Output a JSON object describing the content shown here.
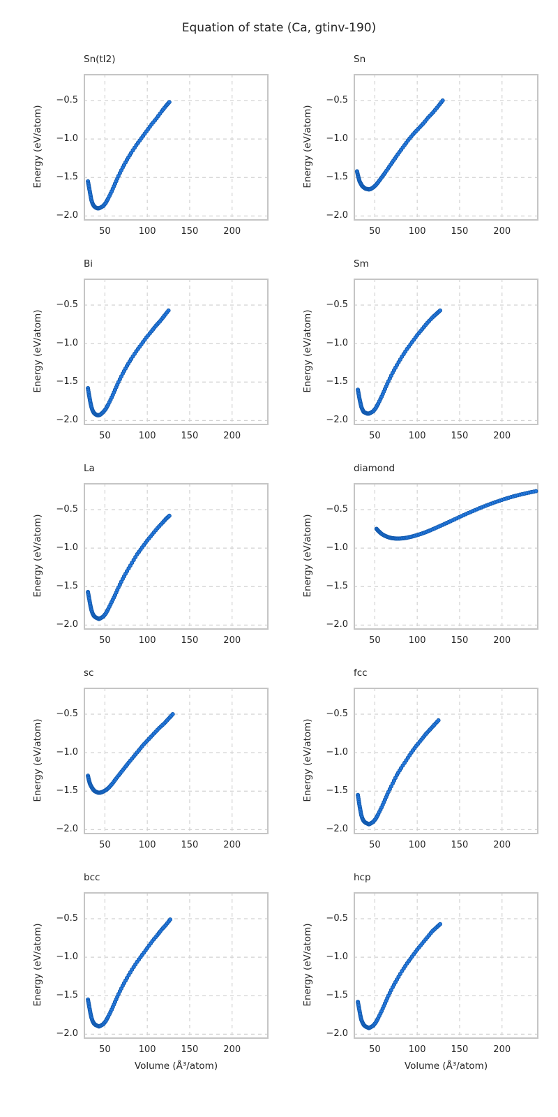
{
  "figure": {
    "title": "Equation of state (Ca, gtinv-190)"
  },
  "style": {
    "point_fill": "#2478dd",
    "point_edge": "#1159ae",
    "grid_color": "#d2d2d2",
    "frame_color": "#c5c5c5",
    "text_color": "#262626",
    "background": "#ffffff"
  },
  "axes": {
    "xlabel": "Volume (Å³/atom)",
    "ylabel": "Energy (eV/atom)",
    "xlim": [
      25,
      243
    ],
    "ylim": [
      -2.06,
      -0.155
    ],
    "xticks": [
      50,
      100,
      150,
      200
    ],
    "yticks": [
      -0.5,
      -1.0,
      -1.5,
      -2.0
    ],
    "xtick_labels": [
      "50",
      "100",
      "150",
      "200"
    ],
    "ytick_labels": [
      "−0.5",
      "−1.0",
      "−1.5",
      "−2.0"
    ],
    "grid": true,
    "grid_style": "dashed"
  },
  "chart_data": [
    {
      "type": "scatter",
      "title": "Sn(tI2)",
      "x": [
        30,
        31,
        32,
        33,
        34,
        35.5,
        37,
        39,
        41,
        43,
        45,
        48,
        51,
        54,
        58,
        62,
        66,
        71,
        76,
        81,
        87,
        93,
        99,
        105,
        111,
        117,
        122,
        126
      ],
      "y": [
        -1.55,
        -1.61,
        -1.67,
        -1.73,
        -1.79,
        -1.84,
        -1.87,
        -1.89,
        -1.9,
        -1.9,
        -1.89,
        -1.87,
        -1.83,
        -1.77,
        -1.68,
        -1.58,
        -1.48,
        -1.37,
        -1.27,
        -1.18,
        -1.08,
        -0.99,
        -0.9,
        -0.81,
        -0.73,
        -0.64,
        -0.57,
        -0.52
      ]
    },
    {
      "type": "scatter",
      "title": "Sn",
      "x": [
        29,
        30,
        31,
        32,
        33.5,
        35,
        37,
        39,
        41,
        43,
        45,
        48,
        51,
        54,
        58,
        62,
        67,
        72,
        77,
        83,
        89,
        95,
        101,
        107,
        113,
        119,
        125,
        130
      ],
      "y": [
        -1.42,
        -1.47,
        -1.51,
        -1.55,
        -1.58,
        -1.61,
        -1.63,
        -1.645,
        -1.65,
        -1.655,
        -1.65,
        -1.63,
        -1.6,
        -1.56,
        -1.5,
        -1.44,
        -1.36,
        -1.28,
        -1.2,
        -1.11,
        -1.02,
        -0.94,
        -0.87,
        -0.8,
        -0.72,
        -0.65,
        -0.57,
        -0.5
      ]
    },
    {
      "type": "scatter",
      "title": "Bi",
      "x": [
        30,
        31,
        32,
        33,
        34,
        35.5,
        37,
        39,
        41,
        43,
        45,
        48,
        51,
        54,
        58,
        62,
        66,
        71,
        76,
        81,
        87,
        93,
        99,
        105,
        110,
        115,
        120,
        125
      ],
      "y": [
        -1.58,
        -1.65,
        -1.71,
        -1.77,
        -1.82,
        -1.87,
        -1.9,
        -1.92,
        -1.93,
        -1.93,
        -1.92,
        -1.89,
        -1.85,
        -1.79,
        -1.7,
        -1.6,
        -1.5,
        -1.39,
        -1.29,
        -1.2,
        -1.1,
        -1.01,
        -0.92,
        -0.84,
        -0.77,
        -0.71,
        -0.64,
        -0.57
      ]
    },
    {
      "type": "scatter",
      "title": "Sm",
      "x": [
        30,
        31,
        32,
        33,
        34,
        35.5,
        37,
        39,
        41,
        43,
        45,
        48,
        51,
        54,
        58,
        62,
        66,
        71,
        76,
        82,
        88,
        94,
        100,
        106,
        112,
        118,
        123,
        127
      ],
      "y": [
        -1.6,
        -1.66,
        -1.72,
        -1.77,
        -1.82,
        -1.86,
        -1.89,
        -1.9,
        -1.91,
        -1.91,
        -1.9,
        -1.88,
        -1.84,
        -1.78,
        -1.69,
        -1.59,
        -1.49,
        -1.38,
        -1.28,
        -1.17,
        -1.07,
        -0.98,
        -0.89,
        -0.81,
        -0.73,
        -0.66,
        -0.61,
        -0.57
      ]
    },
    {
      "type": "scatter",
      "title": "La",
      "x": [
        30,
        31,
        32,
        33,
        34,
        35.5,
        37,
        39,
        41,
        43,
        45,
        48,
        51,
        54,
        58,
        62,
        66,
        71,
        76,
        82,
        88,
        94,
        100,
        106,
        112,
        118,
        122,
        126
      ],
      "y": [
        -1.57,
        -1.63,
        -1.69,
        -1.75,
        -1.8,
        -1.85,
        -1.88,
        -1.9,
        -1.91,
        -1.92,
        -1.91,
        -1.89,
        -1.85,
        -1.79,
        -1.7,
        -1.61,
        -1.51,
        -1.4,
        -1.3,
        -1.19,
        -1.08,
        -0.99,
        -0.9,
        -0.82,
        -0.74,
        -0.67,
        -0.62,
        -0.58
      ]
    },
    {
      "type": "scatter",
      "title": "diamond",
      "x": [
        52,
        54,
        56,
        58,
        61,
        64,
        67,
        70,
        73,
        76,
        80,
        84,
        88,
        93,
        98,
        104,
        110,
        116,
        123,
        130,
        137,
        144,
        152,
        160,
        168,
        176,
        184,
        192,
        200,
        208,
        216,
        224,
        232,
        240
      ],
      "y": [
        -0.75,
        -0.775,
        -0.795,
        -0.815,
        -0.835,
        -0.85,
        -0.862,
        -0.87,
        -0.874,
        -0.876,
        -0.875,
        -0.871,
        -0.864,
        -0.852,
        -0.837,
        -0.817,
        -0.793,
        -0.766,
        -0.732,
        -0.697,
        -0.662,
        -0.626,
        -0.585,
        -0.545,
        -0.507,
        -0.47,
        -0.435,
        -0.403,
        -0.373,
        -0.345,
        -0.32,
        -0.298,
        -0.278,
        -0.26
      ]
    },
    {
      "type": "scatter",
      "title": "sc",
      "x": [
        30,
        31,
        32,
        33,
        34.5,
        36,
        38,
        40,
        42,
        44,
        46,
        49,
        52,
        55,
        59,
        63,
        68,
        73,
        78,
        84,
        90,
        96,
        102,
        108,
        114,
        120,
        125,
        130
      ],
      "y": [
        -1.3,
        -1.35,
        -1.39,
        -1.42,
        -1.45,
        -1.475,
        -1.5,
        -1.51,
        -1.52,
        -1.52,
        -1.515,
        -1.5,
        -1.48,
        -1.45,
        -1.4,
        -1.34,
        -1.27,
        -1.2,
        -1.13,
        -1.05,
        -0.97,
        -0.89,
        -0.82,
        -0.75,
        -0.68,
        -0.62,
        -0.56,
        -0.5
      ]
    },
    {
      "type": "scatter",
      "title": "fcc",
      "x": [
        30,
        31,
        32,
        33,
        34,
        35.5,
        37,
        39,
        41,
        43,
        45,
        48,
        51,
        54,
        58,
        62,
        66,
        71,
        76,
        81,
        87,
        93,
        99,
        105,
        110,
        115,
        120,
        125
      ],
      "y": [
        -1.55,
        -1.62,
        -1.69,
        -1.75,
        -1.81,
        -1.86,
        -1.89,
        -1.91,
        -1.92,
        -1.93,
        -1.92,
        -1.9,
        -1.86,
        -1.8,
        -1.71,
        -1.61,
        -1.51,
        -1.4,
        -1.29,
        -1.2,
        -1.1,
        -1.0,
        -0.91,
        -0.83,
        -0.76,
        -0.7,
        -0.64,
        -0.58
      ]
    },
    {
      "type": "scatter",
      "title": "bcc",
      "x": [
        30,
        31,
        32,
        33,
        34,
        35.5,
        37,
        39,
        41,
        43,
        45,
        48,
        51,
        54,
        58,
        62,
        66,
        71,
        76,
        82,
        88,
        94,
        100,
        106,
        112,
        117,
        122,
        127
      ],
      "y": [
        -1.55,
        -1.61,
        -1.67,
        -1.73,
        -1.78,
        -1.83,
        -1.86,
        -1.88,
        -1.89,
        -1.9,
        -1.89,
        -1.87,
        -1.83,
        -1.77,
        -1.68,
        -1.58,
        -1.48,
        -1.37,
        -1.27,
        -1.16,
        -1.06,
        -0.97,
        -0.88,
        -0.79,
        -0.71,
        -0.64,
        -0.58,
        -0.51
      ]
    },
    {
      "type": "scatter",
      "title": "hcp",
      "x": [
        30,
        31,
        32,
        33,
        34,
        35.5,
        37,
        39,
        41,
        43,
        45,
        48,
        51,
        54,
        58,
        62,
        66,
        71,
        76,
        82,
        88,
        94,
        100,
        106,
        112,
        118,
        123,
        127
      ],
      "y": [
        -1.58,
        -1.64,
        -1.7,
        -1.76,
        -1.81,
        -1.85,
        -1.88,
        -1.9,
        -1.91,
        -1.92,
        -1.91,
        -1.89,
        -1.85,
        -1.79,
        -1.7,
        -1.6,
        -1.5,
        -1.39,
        -1.29,
        -1.18,
        -1.08,
        -0.99,
        -0.9,
        -0.82,
        -0.74,
        -0.66,
        -0.61,
        -0.57
      ]
    }
  ]
}
